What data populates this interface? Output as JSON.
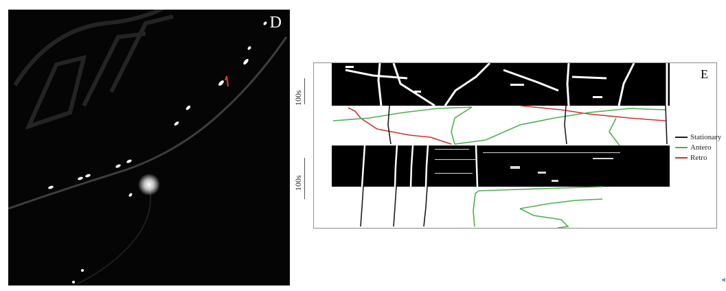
{
  "panel_d": {
    "letter": "D"
  },
  "panel_e": {
    "letter": "E",
    "scale_top_label": "100s",
    "scale_bottom_label": "100s",
    "legend": [
      {
        "label": "Stationary",
        "color": "#1a1a1a"
      },
      {
        "label": "Antero",
        "color": "#4caf50"
      },
      {
        "label": "Retro",
        "color": "#d32f2f"
      }
    ]
  },
  "colors": {
    "background": "#ffffff",
    "micrograph": "#050505",
    "stationary": "#1a1a1a",
    "antero": "#4caf50",
    "retro": "#d32f2f"
  }
}
